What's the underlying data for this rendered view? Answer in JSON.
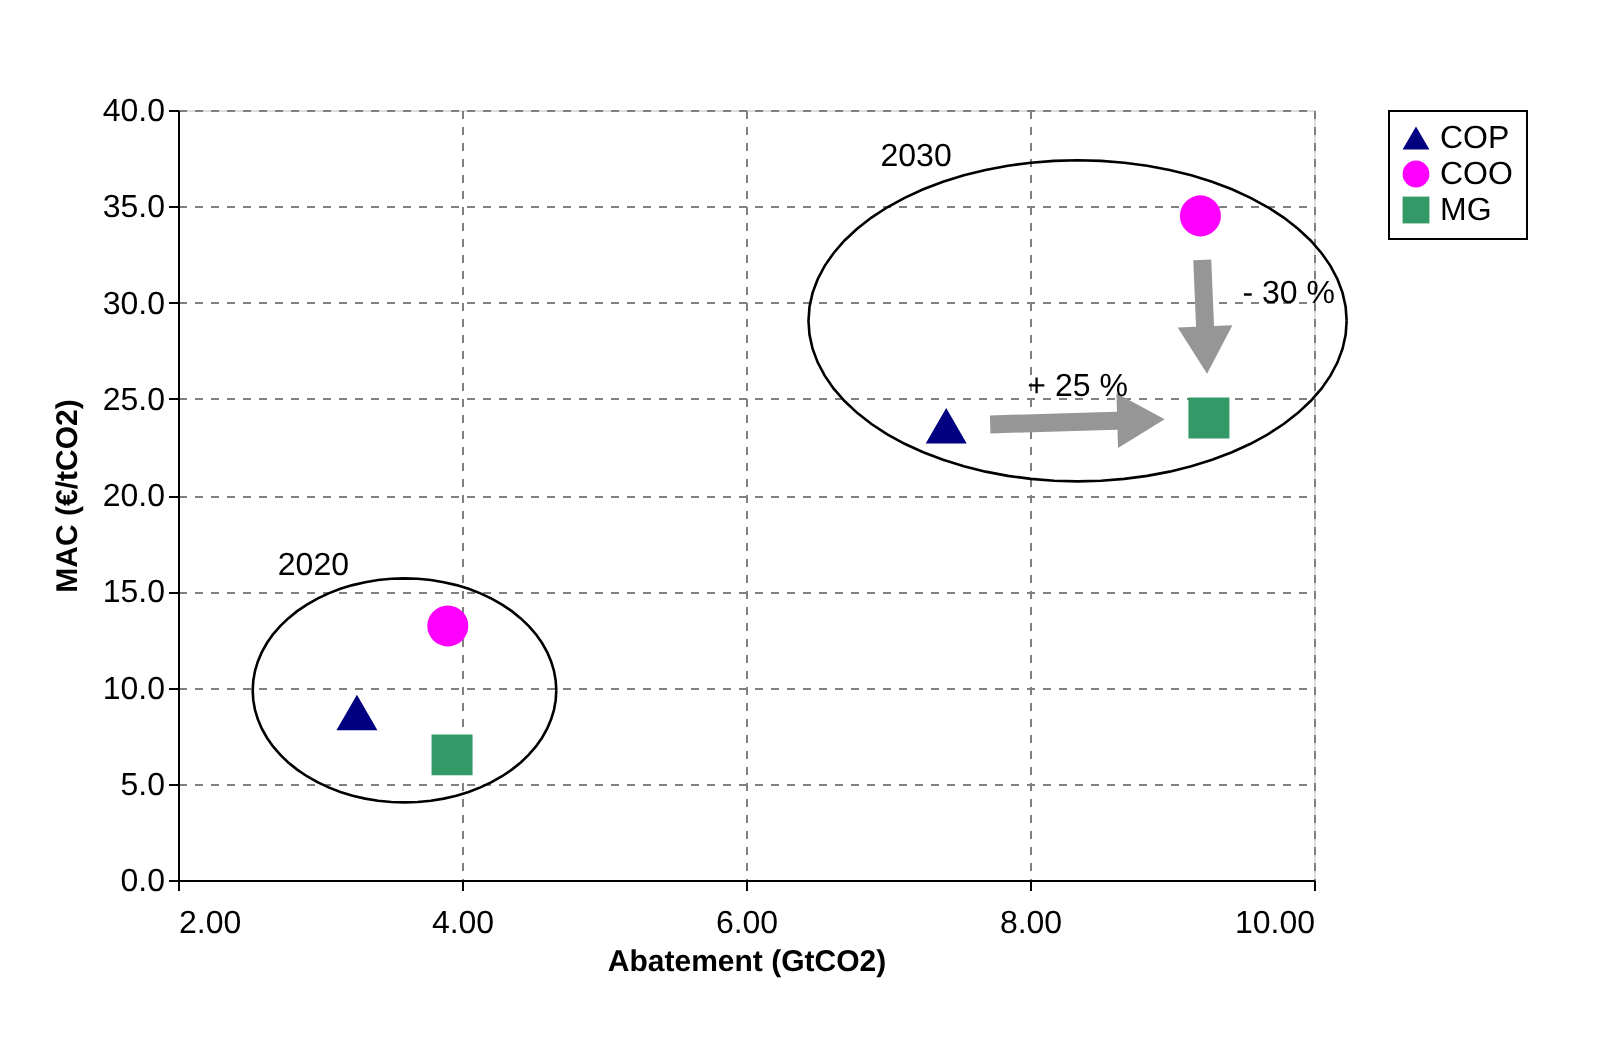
{
  "chart_data": {
    "type": "scatter",
    "xlabel": "Abatement (GtCO2)",
    "ylabel": "MAC (€/tCO2)",
    "xlim": [
      2,
      10
    ],
    "ylim": [
      0,
      40
    ],
    "xticks": [
      {
        "value": 2,
        "label": "2.00"
      },
      {
        "value": 4,
        "label": "4.00"
      },
      {
        "value": 6,
        "label": "6.00"
      },
      {
        "value": 8,
        "label": "8.00"
      },
      {
        "value": 10,
        "label": "10.00"
      }
    ],
    "yticks": [
      {
        "value": 0,
        "label": "0.0"
      },
      {
        "value": 5,
        "label": "5.0"
      },
      {
        "value": 10,
        "label": "10.0"
      },
      {
        "value": 15,
        "label": "15.0"
      },
      {
        "value": 20,
        "label": "20.0"
      },
      {
        "value": 25,
        "label": "25.0"
      },
      {
        "value": 30,
        "label": "30.0"
      },
      {
        "value": 35,
        "label": "35.0"
      },
      {
        "value": 40,
        "label": "40.0"
      }
    ],
    "series": [
      {
        "name": "COP",
        "color": "#000080",
        "marker": "triangle",
        "x": [
          3.26,
          7.41
        ],
        "values": [
          8.7,
          23.6
        ]
      },
      {
        "name": "COO",
        "color": "#ff00ff",
        "marker": "circle",
        "x": [
          3.9,
          9.2
        ],
        "values": [
          13.2,
          34.5
        ]
      },
      {
        "name": "MG",
        "color": "#339966",
        "marker": "square",
        "x": [
          3.93,
          9.26
        ],
        "values": [
          6.5,
          24.0
        ]
      }
    ],
    "annotations": [
      "2020",
      "2030",
      "+ 25 %",
      "- 30 %"
    ],
    "grid": true,
    "legend": "right"
  }
}
